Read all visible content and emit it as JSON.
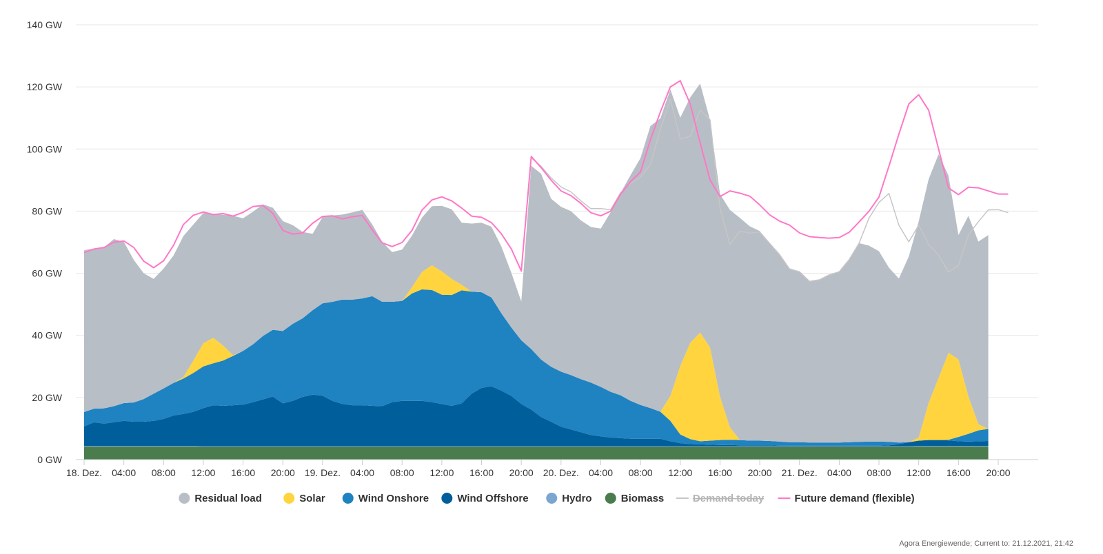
{
  "chart_data": {
    "type": "area",
    "x_unit": "hour index from 18 Dec 2021 00:00 (hourly)",
    "x_tick_positions": [
      0,
      4,
      8,
      12,
      16,
      20,
      24,
      28,
      32,
      36,
      40,
      44,
      48,
      52,
      56,
      60,
      64,
      68,
      72,
      76,
      80,
      84,
      88,
      92
    ],
    "x_tick_labels": [
      "18. Dez.",
      "04:00",
      "08:00",
      "12:00",
      "16:00",
      "20:00",
      "19. Dez.",
      "04:00",
      "08:00",
      "12:00",
      "16:00",
      "20:00",
      "20. Dez.",
      "04:00",
      "08:00",
      "12:00",
      "16:00",
      "20:00",
      "21. Dez.",
      "04:00",
      "08:00",
      "12:00",
      "16:00",
      "20:00"
    ],
    "y_ticks": [
      0,
      20,
      40,
      60,
      80,
      100,
      120,
      140
    ],
    "y_tick_labels": [
      "0 GW",
      "20 GW",
      "40 GW",
      "60 GW",
      "80 GW",
      "100 GW",
      "120 GW",
      "140 GW"
    ],
    "ylim": [
      0,
      140
    ],
    "xlim": [
      0,
      96
    ],
    "grid": true,
    "legend_position": "bottom",
    "series": [
      {
        "name": "Biomass",
        "color": "#4a7c4e",
        "stack": true,
        "values": [
          4.2,
          4.2,
          4.2,
          4.2,
          4.2,
          4.2,
          4.2,
          4.2,
          4.2,
          4.2,
          4.2,
          4.2,
          4.1,
          4.1,
          4.1,
          4.1,
          4.1,
          4.1,
          4.1,
          4.1,
          4.1,
          4.1,
          4.1,
          4.1,
          4.1,
          4.1,
          4.1,
          4.1,
          4.1,
          4.1,
          4.1,
          4.1,
          4.1,
          4.1,
          4.1,
          4.1,
          4.1,
          4.1,
          4.1,
          4.1,
          4.1,
          4.1,
          4.1,
          4.1,
          4.1,
          4.1,
          4.1,
          4.1,
          4.1,
          4.1,
          4.1,
          4.1,
          4.1,
          4.1,
          4.1,
          4.1,
          4.1,
          4.1,
          4.1,
          4.1,
          4.1,
          4.1,
          4.1,
          4.1,
          4.1,
          4.1,
          4.1,
          4.1,
          4.1,
          4.1,
          4.1,
          4.1,
          4.1,
          4.1,
          4.1,
          4.1,
          4.1,
          4.1,
          4.1,
          4.1,
          4.1,
          4.1,
          4.1,
          4.1,
          4.2,
          4.2,
          4.2,
          4.2,
          4.2,
          4.2,
          4.2,
          4.2
        ]
      },
      {
        "name": "Hydro",
        "color": "#7aa6cf",
        "stack": true,
        "values": [
          0.2,
          0.2,
          0.2,
          0.2,
          0.2,
          0.2,
          0.2,
          0.2,
          0.2,
          0.2,
          0.2,
          0.2,
          0.2,
          0.2,
          0.2,
          0.2,
          0.2,
          0.2,
          0.2,
          0.2,
          0.2,
          0.2,
          0.2,
          0.2,
          0.2,
          0.2,
          0.2,
          0.2,
          0.2,
          0.2,
          0.2,
          0.2,
          0.2,
          0.2,
          0.2,
          0.2,
          0.2,
          0.2,
          0.2,
          0.2,
          0.2,
          0.2,
          0.2,
          0.2,
          0.2,
          0.2,
          0.2,
          0.2,
          0.2,
          0.2,
          0.2,
          0.2,
          0.2,
          0.2,
          0.2,
          0.2,
          0.2,
          0.2,
          0.2,
          0.2,
          0.2,
          0.2,
          0.2,
          0.2,
          0.2,
          0.2,
          0.2,
          0.2,
          0.2,
          0.2,
          0.2,
          0.2,
          0.2,
          0.2,
          0.2,
          0.2,
          0.2,
          0.2,
          0.2,
          0.2,
          0.2,
          0.2,
          0.2,
          0.2,
          0.2,
          0.2,
          0.2,
          0.2,
          0.2,
          0.2,
          0.2,
          0.2
        ]
      },
      {
        "name": "Wind Offshore",
        "color": "#005f9a",
        "stack": true,
        "values": [
          6.3,
          7.6,
          7.2,
          7.6,
          8.1,
          7.8,
          7.8,
          8.1,
          8.7,
          9.8,
          10.3,
          11.0,
          12.3,
          13.2,
          13.0,
          13.2,
          13.4,
          14.2,
          15.1,
          16.0,
          13.8,
          14.6,
          15.9,
          16.6,
          16.3,
          14.6,
          13.6,
          13.2,
          13.2,
          13.0,
          12.9,
          14.2,
          14.6,
          14.6,
          14.6,
          14.2,
          13.6,
          13.0,
          13.8,
          16.9,
          18.8,
          19.3,
          17.9,
          16.2,
          13.6,
          11.8,
          9.4,
          7.9,
          6.3,
          5.4,
          4.5,
          3.6,
          3.2,
          2.8,
          2.6,
          2.4,
          2.4,
          2.4,
          2.4,
          1.6,
          1.0,
          0.7,
          0.6,
          0.5,
          0.4,
          0.4,
          0.3,
          0.3,
          0.3,
          0.3,
          0.2,
          0.2,
          0.2,
          0.2,
          0.2,
          0.2,
          0.2,
          0.2,
          0.2,
          0.2,
          0.2,
          0.3,
          0.7,
          1.3,
          1.7,
          1.9,
          1.9,
          1.8,
          1.5,
          1.4,
          1.5,
          1.6,
          2.0,
          2.6
        ]
      },
      {
        "name": "Wind Onshore",
        "color": "#1f82c1",
        "stack": true,
        "values": [
          4.6,
          4.4,
          4.9,
          5.2,
          5.7,
          6.2,
          7.3,
          8.7,
          9.8,
          10.5,
          11.4,
          12.5,
          13.4,
          13.5,
          14.6,
          15.9,
          17.3,
          18.6,
          20.4,
          21.5,
          23.3,
          24.8,
          25.3,
          27.2,
          29.7,
          31.9,
          33.6,
          34.0,
          34.4,
          35.3,
          33.6,
          32.3,
          32.2,
          34.6,
          35.9,
          36.1,
          35.2,
          35.7,
          36.4,
          32.9,
          30.8,
          28.6,
          24.9,
          22.0,
          20.5,
          19.5,
          18.5,
          17.7,
          17.7,
          17.5,
          17.1,
          16.9,
          15.9,
          14.7,
          13.8,
          12.2,
          10.9,
          9.9,
          8.7,
          6.6,
          2.8,
          1.6,
          1.0,
          1.3,
          1.6,
          1.7,
          1.7,
          1.5,
          1.5,
          1.4,
          1.3,
          1.1,
          1.1,
          1.0,
          1.0,
          1.0,
          1.0,
          1.1,
          1.2,
          1.3,
          1.3,
          1.1,
          0.5,
          0.0,
          0.0,
          0.0,
          0.0,
          0.2,
          1.4,
          2.5,
          3.5,
          3.9,
          4.3,
          4.7
        ]
      },
      {
        "name": "Solar",
        "color": "#ffd43f",
        "stack": true,
        "values": [
          0,
          0,
          0,
          0,
          0,
          0,
          0,
          0,
          0,
          0,
          0.5,
          4.0,
          7.5,
          8.2,
          4.8,
          0.2,
          0,
          0,
          0,
          0,
          0,
          0,
          0,
          0,
          0,
          0,
          0,
          0,
          0,
          0,
          0,
          0,
          0,
          2.0,
          5.6,
          8.0,
          7.5,
          5.2,
          1.8,
          0,
          0,
          0,
          0,
          0,
          0,
          0,
          0,
          0,
          0,
          0,
          0,
          0,
          0,
          0,
          0,
          0,
          0,
          0,
          0,
          8.0,
          22.0,
          31.0,
          35.0,
          30.0,
          14.0,
          4.0,
          0,
          0,
          0,
          0,
          0,
          0,
          0,
          0,
          0,
          0,
          0,
          0,
          0,
          0,
          0,
          0,
          0,
          0,
          1.0,
          12.0,
          20.0,
          28.0,
          25.0,
          12.0,
          2.0,
          0,
          0,
          0,
          0,
          0
        ]
      },
      {
        "name": "Residual load",
        "color": "#b8bec5",
        "stack": true,
        "values": [
          51.8,
          51.4,
          51.8,
          53.8,
          51.9,
          45.9,
          40.5,
          37.0,
          38.6,
          41.0,
          45.4,
          43.8,
          41.9,
          39.9,
          42.1,
          44.9,
          42.7,
          42.7,
          42.4,
          39.3,
          35.4,
          31.8,
          27.8,
          24.6,
          27.8,
          27.8,
          27.4,
          28.1,
          28.5,
          23.1,
          19.3,
          16.0,
          16.5,
          16.6,
          17.5,
          19.0,
          21.1,
          22.4,
          20.0,
          21.9,
          22.4,
          22.8,
          21.5,
          17.6,
          12.5,
          59.0,
          59.8,
          54.1,
          53.1,
          52.8,
          51.1,
          50.1,
          51.0,
          57.9,
          65.2,
          72.7,
          79.5,
          90.8,
          94.5,
          98.7,
          80.0,
          79.0,
          80.2,
          73.2,
          65.2,
          70.0,
          71.5,
          69.0,
          67.5,
          63.5,
          60.2,
          56.0,
          55.0,
          52.0,
          52.5,
          54.0,
          55.0,
          58.8,
          64.0,
          63.1,
          61.3,
          56.1,
          52.8,
          59.8,
          69.6,
          72.0,
          72.0,
          57.0,
          40.0,
          58.2,
          58.8,
          62.4,
          61.8,
          60.5
        ]
      },
      {
        "name": "Demand today",
        "color": "#c6c6c6",
        "line": true,
        "muted": true,
        "values": [
          67.3,
          67.8,
          68.3,
          70.0,
          70.4,
          68.3,
          63.9,
          61.8,
          64.0,
          69.0,
          75.7,
          78.7,
          79.7,
          78.9,
          79.2,
          78.4,
          79.6,
          81.5,
          81.8,
          79.3,
          73.8,
          72.6,
          73.0,
          76.1,
          78.3,
          78.5,
          77.5,
          78.2,
          78.6,
          74.0,
          69.8,
          68.6,
          69.9,
          73.8,
          80.3,
          83.6,
          84.6,
          83.3,
          81.0,
          78.4,
          78.0,
          76.3,
          72.7,
          67.8,
          60.7,
          97.2,
          94.4,
          90.7,
          87.8,
          86.2,
          83.3,
          80.8,
          80.8,
          80.5,
          86.0,
          89.0,
          91.0,
          95.0,
          106.5,
          116.0,
          103.2,
          104.1,
          112.5,
          109.4,
          81.0,
          69.2,
          73.6,
          72.9,
          73.3,
          69.6,
          66.0,
          61.4,
          60.5,
          57.4,
          57.9,
          59.5,
          60.5,
          64.4,
          69.7,
          77.8,
          82.8,
          85.7,
          75.5,
          70.1,
          75.5,
          69.3,
          65.8,
          60.4,
          62.5,
          72.4,
          76.6,
          80.4,
          80.5,
          79.5
        ]
      },
      {
        "name": "Future demand (flexible)",
        "color": "#ff77c8",
        "line": true,
        "values": [
          66.7,
          67.8,
          68.3,
          70.0,
          70.4,
          68.3,
          63.9,
          61.8,
          64.0,
          69.0,
          75.7,
          78.7,
          79.7,
          78.9,
          79.2,
          78.4,
          79.6,
          81.5,
          81.8,
          79.3,
          73.8,
          72.6,
          73.0,
          76.1,
          78.3,
          78.5,
          77.5,
          78.2,
          78.6,
          74.0,
          69.8,
          68.6,
          69.9,
          73.8,
          80.3,
          83.6,
          84.6,
          83.3,
          81.0,
          78.4,
          78.0,
          76.3,
          72.7,
          67.8,
          60.7,
          97.6,
          94.0,
          90.0,
          86.5,
          85.0,
          82.5,
          79.5,
          78.5,
          80.0,
          85.5,
          89.5,
          92.6,
          103.0,
          112.0,
          120.0,
          122.0,
          114.5,
          102.0,
          90.0,
          84.7,
          86.5,
          85.8,
          84.8,
          82.0,
          78.8,
          76.8,
          75.5,
          73.0,
          71.8,
          71.5,
          71.3,
          71.5,
          73.2,
          76.5,
          80.0,
          84.5,
          94.5,
          104.8,
          114.5,
          117.5,
          112.5,
          100.0,
          87.5,
          85.3,
          87.7,
          87.5,
          86.5,
          85.5,
          85.5
        ]
      }
    ]
  },
  "legend": [
    {
      "label": "Residual load",
      "color": "#b8bec5",
      "marker": "circle",
      "muted": false
    },
    {
      "label": "Solar",
      "color": "#ffd43f",
      "marker": "circle",
      "muted": false
    },
    {
      "label": "Wind Onshore",
      "color": "#1f82c1",
      "marker": "circle",
      "muted": false
    },
    {
      "label": "Wind Offshore",
      "color": "#005f9a",
      "marker": "circle",
      "muted": false
    },
    {
      "label": "Hydro",
      "color": "#7aa6cf",
      "marker": "circle",
      "muted": false
    },
    {
      "label": "Biomass",
      "color": "#4a7c4e",
      "marker": "circle",
      "muted": false
    },
    {
      "label": "Demand today",
      "color": "#c6c6c6",
      "marker": "line",
      "muted": true
    },
    {
      "label": "Future demand (flexible)",
      "color": "#ff77c8",
      "marker": "line",
      "muted": false
    }
  ],
  "credit": "Agora Energiewende; Current to: 21.12.2021, 21:42"
}
